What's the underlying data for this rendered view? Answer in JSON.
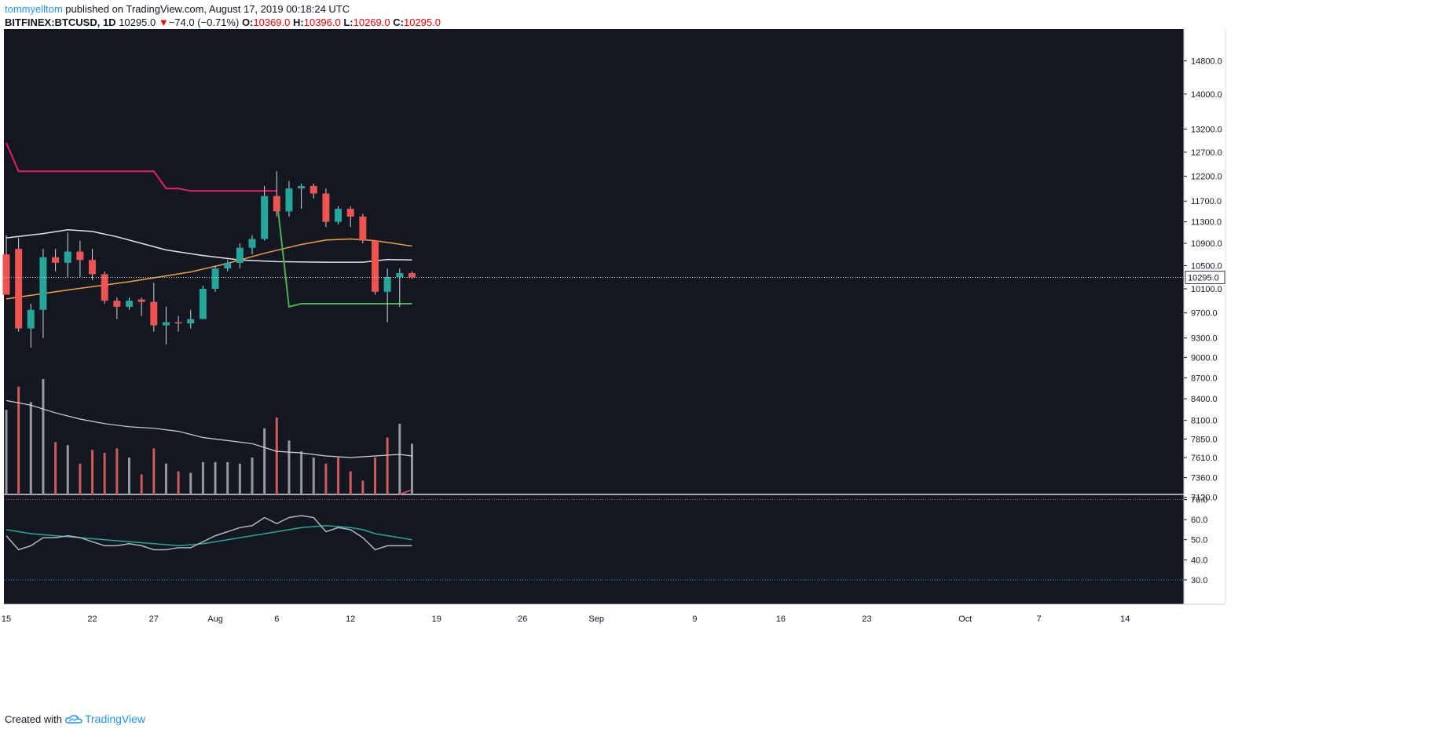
{
  "header": {
    "user": "tommyelltom",
    "published_text": " published on TradingView.com, August 17, 2019 00:18:24 UTC",
    "symbol": "BITFINEX:BTCUSD, 1D",
    "price": "10295.0",
    "change_arrow": "▼",
    "change": "−74.0 (−0.71%)",
    "o_label": "O:",
    "o_value": "10369.0",
    "h_label": "H:",
    "h_value": "10396.0",
    "l_label": "L:",
    "l_value": "10269.0",
    "c_label": "C:",
    "c_value": "10295.0"
  },
  "footer": {
    "created_with": "Created with",
    "brand": "TradingView"
  },
  "colors": {
    "background": "#131722",
    "up": "#26a69a",
    "down": "#ef5350",
    "upper_band": "#e91e63",
    "lower_band": "#4caf50",
    "ma_orange": "#f0a040",
    "ma_white": "#e0e3eb",
    "rsi_teal": "#26a69a",
    "rsi_gray": "#b2b5be"
  },
  "chart_data": {
    "type": "candlestick",
    "symbol": "BITFINEX:BTCUSD",
    "interval": "1D",
    "price_axis_ticks": [
      "14800.0",
      "14000.0",
      "13200.0",
      "12700.0",
      "12200.0",
      "11700.0",
      "11300.0",
      "10900.0",
      "10500.0",
      "10100.0",
      "9700.0",
      "9300.0",
      "9000.0",
      "8700.0",
      "8400.0",
      "8100.0",
      "7850.0",
      "7610.0",
      "7360.0",
      "7120.0"
    ],
    "price_axis_scale": "log",
    "last_price_label": "10295.0",
    "rsi_axis_ticks": [
      "70.0",
      "60.0",
      "50.0",
      "40.0",
      "30.0"
    ],
    "rsi_levels": [
      70,
      30
    ],
    "date_ticks": [
      {
        "label": "15",
        "day": 0
      },
      {
        "label": "22",
        "day": 7
      },
      {
        "label": "27",
        "day": 12
      },
      {
        "label": "Aug",
        "day": 17
      },
      {
        "label": "6",
        "day": 22
      },
      {
        "label": "12",
        "day": 28
      },
      {
        "label": "19",
        "day": 35
      },
      {
        "label": "26",
        "day": 42
      },
      {
        "label": "Sep",
        "day": 48
      },
      {
        "label": "9",
        "day": 56
      },
      {
        "label": "16",
        "day": 63
      },
      {
        "label": "23",
        "day": 70
      },
      {
        "label": "Oct",
        "day": 78
      },
      {
        "label": "7",
        "day": 84
      },
      {
        "label": "14",
        "day": 91
      }
    ],
    "candles": [
      {
        "day": 0,
        "o": 10700,
        "h": 11050,
        "l": 10000,
        "c": 10000
      },
      {
        "day": 1,
        "o": 10800,
        "h": 11000,
        "l": 9400,
        "c": 9450
      },
      {
        "day": 2,
        "o": 9450,
        "h": 9850,
        "l": 9150,
        "c": 9750
      },
      {
        "day": 3,
        "o": 9750,
        "h": 10800,
        "l": 9300,
        "c": 10650
      },
      {
        "day": 4,
        "o": 10650,
        "h": 10800,
        "l": 10400,
        "c": 10550
      },
      {
        "day": 5,
        "o": 10550,
        "h": 11100,
        "l": 10300,
        "c": 10750
      },
      {
        "day": 6,
        "o": 10750,
        "h": 10950,
        "l": 10300,
        "c": 10600
      },
      {
        "day": 7,
        "o": 10600,
        "h": 10800,
        "l": 10250,
        "c": 10350
      },
      {
        "day": 8,
        "o": 10350,
        "h": 10400,
        "l": 9850,
        "c": 9900
      },
      {
        "day": 9,
        "o": 9900,
        "h": 9950,
        "l": 9600,
        "c": 9800
      },
      {
        "day": 10,
        "o": 9800,
        "h": 9950,
        "l": 9750,
        "c": 9900
      },
      {
        "day": 11,
        "o": 9920,
        "h": 9950,
        "l": 9650,
        "c": 9880
      },
      {
        "day": 12,
        "o": 9880,
        "h": 10200,
        "l": 9400,
        "c": 9500
      },
      {
        "day": 13,
        "o": 9500,
        "h": 9800,
        "l": 9200,
        "c": 9550
      },
      {
        "day": 14,
        "o": 9550,
        "h": 9650,
        "l": 9400,
        "c": 9530
      },
      {
        "day": 15,
        "o": 9530,
        "h": 9750,
        "l": 9450,
        "c": 9600
      },
      {
        "day": 16,
        "o": 9600,
        "h": 10150,
        "l": 9600,
        "c": 10100
      },
      {
        "day": 17,
        "o": 10100,
        "h": 10500,
        "l": 10050,
        "c": 10450
      },
      {
        "day": 18,
        "o": 10450,
        "h": 10600,
        "l": 10400,
        "c": 10550
      },
      {
        "day": 19,
        "o": 10550,
        "h": 10900,
        "l": 10450,
        "c": 10820
      },
      {
        "day": 20,
        "o": 10820,
        "h": 11050,
        "l": 10700,
        "c": 10980
      },
      {
        "day": 21,
        "o": 10980,
        "h": 12000,
        "l": 10950,
        "c": 11800
      },
      {
        "day": 22,
        "o": 11800,
        "h": 12300,
        "l": 11400,
        "c": 11500
      },
      {
        "day": 23,
        "o": 11500,
        "h": 12100,
        "l": 11400,
        "c": 11950
      },
      {
        "day": 24,
        "o": 11950,
        "h": 12050,
        "l": 11550,
        "c": 12000
      },
      {
        "day": 25,
        "o": 12000,
        "h": 12050,
        "l": 11750,
        "c": 11850
      },
      {
        "day": 26,
        "o": 11850,
        "h": 11950,
        "l": 11200,
        "c": 11300
      },
      {
        "day": 27,
        "o": 11300,
        "h": 11600,
        "l": 11250,
        "c": 11550
      },
      {
        "day": 28,
        "o": 11550,
        "h": 11600,
        "l": 11200,
        "c": 11400
      },
      {
        "day": 29,
        "o": 11400,
        "h": 11450,
        "l": 10900,
        "c": 10950
      },
      {
        "day": 30,
        "o": 10950,
        "h": 10950,
        "l": 10000,
        "c": 10050
      },
      {
        "day": 31,
        "o": 10050,
        "h": 10450,
        "l": 9550,
        "c": 10300
      },
      {
        "day": 32,
        "o": 10300,
        "h": 10450,
        "l": 9800,
        "c": 10369
      },
      {
        "day": 33,
        "o": 10369,
        "h": 10396,
        "l": 10269,
        "c": 10295
      }
    ],
    "upper_band": [
      [
        0,
        12900
      ],
      [
        1,
        12300
      ],
      [
        12,
        12300
      ],
      [
        13,
        11950
      ],
      [
        14,
        11950
      ],
      [
        15,
        11900
      ],
      [
        22,
        11900
      ]
    ],
    "lower_band": [
      [
        22,
        11750
      ],
      [
        23,
        9800
      ],
      [
        24,
        9850
      ],
      [
        33,
        9850
      ]
    ],
    "ma_orange": [
      [
        0,
        9930
      ],
      [
        5,
        10080
      ],
      [
        10,
        10220
      ],
      [
        15,
        10390
      ],
      [
        18,
        10540
      ],
      [
        21,
        10720
      ],
      [
        24,
        10880
      ],
      [
        26,
        10960
      ],
      [
        28,
        10980
      ],
      [
        30,
        10950
      ],
      [
        33,
        10850
      ]
    ],
    "ma_white": [
      [
        0,
        11000
      ],
      [
        3,
        11080
      ],
      [
        5,
        11150
      ],
      [
        7,
        11120
      ],
      [
        9,
        11020
      ],
      [
        11,
        10900
      ],
      [
        13,
        10780
      ],
      [
        16,
        10680
      ],
      [
        19,
        10600
      ],
      [
        22,
        10570
      ],
      [
        26,
        10560
      ],
      [
        29,
        10560
      ],
      [
        31,
        10610
      ],
      [
        33,
        10600
      ]
    ],
    "volume": [
      {
        "day": 0,
        "v": 5.5,
        "dir": "up"
      },
      {
        "day": 1,
        "v": 7.0,
        "dir": "down"
      },
      {
        "day": 2,
        "v": 6.0,
        "dir": "up"
      },
      {
        "day": 3,
        "v": 7.5,
        "dir": "up"
      },
      {
        "day": 4,
        "v": 3.4,
        "dir": "down"
      },
      {
        "day": 5,
        "v": 3.2,
        "dir": "up"
      },
      {
        "day": 6,
        "v": 2.0,
        "dir": "down"
      },
      {
        "day": 7,
        "v": 2.9,
        "dir": "down"
      },
      {
        "day": 8,
        "v": 2.7,
        "dir": "down"
      },
      {
        "day": 9,
        "v": 3.0,
        "dir": "down"
      },
      {
        "day": 10,
        "v": 2.4,
        "dir": "up"
      },
      {
        "day": 11,
        "v": 1.3,
        "dir": "down"
      },
      {
        "day": 12,
        "v": 3.0,
        "dir": "down"
      },
      {
        "day": 13,
        "v": 2.0,
        "dir": "up"
      },
      {
        "day": 14,
        "v": 1.5,
        "dir": "down"
      },
      {
        "day": 15,
        "v": 1.4,
        "dir": "up"
      },
      {
        "day": 16,
        "v": 2.1,
        "dir": "up"
      },
      {
        "day": 17,
        "v": 2.1,
        "dir": "up"
      },
      {
        "day": 18,
        "v": 2.1,
        "dir": "up"
      },
      {
        "day": 19,
        "v": 2.0,
        "dir": "up"
      },
      {
        "day": 20,
        "v": 2.4,
        "dir": "up"
      },
      {
        "day": 21,
        "v": 4.3,
        "dir": "up"
      },
      {
        "day": 22,
        "v": 5.0,
        "dir": "down"
      },
      {
        "day": 23,
        "v": 3.5,
        "dir": "up"
      },
      {
        "day": 24,
        "v": 2.8,
        "dir": "up"
      },
      {
        "day": 25,
        "v": 2.4,
        "dir": "up"
      },
      {
        "day": 26,
        "v": 2.0,
        "dir": "down"
      },
      {
        "day": 27,
        "v": 2.4,
        "dir": "down"
      },
      {
        "day": 28,
        "v": 1.5,
        "dir": "down"
      },
      {
        "day": 29,
        "v": 0.9,
        "dir": "down"
      },
      {
        "day": 30,
        "v": 2.4,
        "dir": "down"
      },
      {
        "day": 31,
        "v": 3.7,
        "dir": "down"
      },
      {
        "day": 32,
        "v": 4.6,
        "dir": "up"
      },
      {
        "day": 33,
        "v": 3.3,
        "dir": "up"
      }
    ],
    "volume_ma": [
      [
        0,
        6.1
      ],
      [
        2,
        5.8
      ],
      [
        4,
        5.3
      ],
      [
        6,
        4.9
      ],
      [
        8,
        4.6
      ],
      [
        10,
        4.4
      ],
      [
        12,
        4.3
      ],
      [
        14,
        4.1
      ],
      [
        16,
        3.7
      ],
      [
        18,
        3.5
      ],
      [
        20,
        3.3
      ],
      [
        22,
        2.8
      ],
      [
        24,
        2.7
      ],
      [
        26,
        2.5
      ],
      [
        28,
        2.4
      ],
      [
        30,
        2.5
      ],
      [
        32,
        2.6
      ],
      [
        33,
        2.5
      ]
    ],
    "volume_red_line": [
      [
        32,
        0.0
      ],
      [
        33,
        0.3
      ]
    ],
    "rsi": [
      [
        0,
        52
      ],
      [
        1,
        45
      ],
      [
        2,
        47
      ],
      [
        3,
        51
      ],
      [
        4,
        51
      ],
      [
        5,
        52
      ],
      [
        6,
        51
      ],
      [
        7,
        49
      ],
      [
        8,
        47
      ],
      [
        9,
        47
      ],
      [
        10,
        48
      ],
      [
        11,
        47
      ],
      [
        12,
        45
      ],
      [
        13,
        45
      ],
      [
        14,
        46
      ],
      [
        15,
        46
      ],
      [
        16,
        49
      ],
      [
        17,
        52
      ],
      [
        18,
        54
      ],
      [
        19,
        56
      ],
      [
        20,
        57
      ],
      [
        21,
        61
      ],
      [
        22,
        58
      ],
      [
        23,
        61
      ],
      [
        24,
        62
      ],
      [
        25,
        61
      ],
      [
        26,
        54
      ],
      [
        27,
        56
      ],
      [
        28,
        55
      ],
      [
        29,
        51
      ],
      [
        30,
        45
      ],
      [
        31,
        47
      ],
      [
        32,
        47
      ],
      [
        33,
        47
      ]
    ],
    "rsi_ma": [
      [
        0,
        55
      ],
      [
        2,
        53
      ],
      [
        4,
        52
      ],
      [
        6,
        51
      ],
      [
        8,
        50
      ],
      [
        10,
        49
      ],
      [
        12,
        48
      ],
      [
        14,
        47
      ],
      [
        16,
        48
      ],
      [
        18,
        50
      ],
      [
        20,
        52
      ],
      [
        22,
        54
      ],
      [
        24,
        56
      ],
      [
        26,
        57
      ],
      [
        28,
        56
      ],
      [
        29,
        55
      ],
      [
        30,
        53
      ],
      [
        32,
        51
      ],
      [
        33,
        50
      ]
    ]
  }
}
